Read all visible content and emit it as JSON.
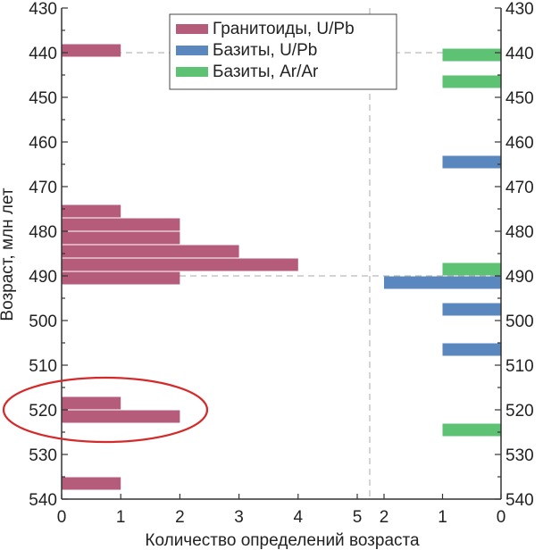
{
  "chart_data": {
    "type": "bar",
    "orientation": "horizontal",
    "ylabel": "Возраст, млн лет",
    "xlabel": "Количество определений возраста",
    "ylim": [
      540,
      430
    ],
    "y_ticks": [
      430,
      440,
      450,
      460,
      470,
      480,
      490,
      500,
      510,
      520,
      530,
      540
    ],
    "grid": "dashed lines at y=440 and y=490",
    "legend_position": "top",
    "left_panel": {
      "x_range": [
        0,
        5
      ],
      "x_ticks": [
        0,
        1,
        2,
        3,
        4,
        5
      ],
      "series": [
        {
          "name": "Гранитоиды, U/Pb",
          "color": "#b65c7b",
          "bins": [
            {
              "from": 438,
              "to": 441,
              "value": 1
            },
            {
              "from": 474,
              "to": 477,
              "value": 1
            },
            {
              "from": 477,
              "to": 480,
              "value": 2
            },
            {
              "from": 480,
              "to": 483,
              "value": 2
            },
            {
              "from": 483,
              "to": 486,
              "value": 3
            },
            {
              "from": 486,
              "to": 489,
              "value": 4
            },
            {
              "from": 489,
              "to": 492,
              "value": 2
            },
            {
              "from": 517,
              "to": 520,
              "value": 1
            },
            {
              "from": 520,
              "to": 523,
              "value": 2
            },
            {
              "from": 535,
              "to": 538,
              "value": 1
            }
          ]
        }
      ]
    },
    "right_panel": {
      "x_range": [
        2,
        0
      ],
      "x_ticks": [
        2,
        1,
        0
      ],
      "series": [
        {
          "name": "Базиты, U/Pb",
          "color": "#5b87bf",
          "bins": [
            {
              "from": 463,
              "to": 466,
              "value": 1
            },
            {
              "from": 490,
              "to": 493,
              "value": 2
            },
            {
              "from": 496,
              "to": 499,
              "value": 1
            },
            {
              "from": 505,
              "to": 508,
              "value": 1
            }
          ]
        },
        {
          "name": "Базиты, Ar/Ar",
          "color": "#5dc273",
          "bins": [
            {
              "from": 439,
              "to": 442,
              "value": 1
            },
            {
              "from": 445,
              "to": 448,
              "value": 1
            },
            {
              "from": 487,
              "to": 490,
              "value": 1
            },
            {
              "from": 523,
              "to": 526,
              "value": 1
            }
          ]
        }
      ]
    },
    "legend": [
      "Гранитоиды, U/Pb",
      "Базиты, U/Pb",
      "Базиты, Ar/Ar"
    ],
    "annotation": "red ellipse around the 517–523 Ma granitoid bars"
  }
}
